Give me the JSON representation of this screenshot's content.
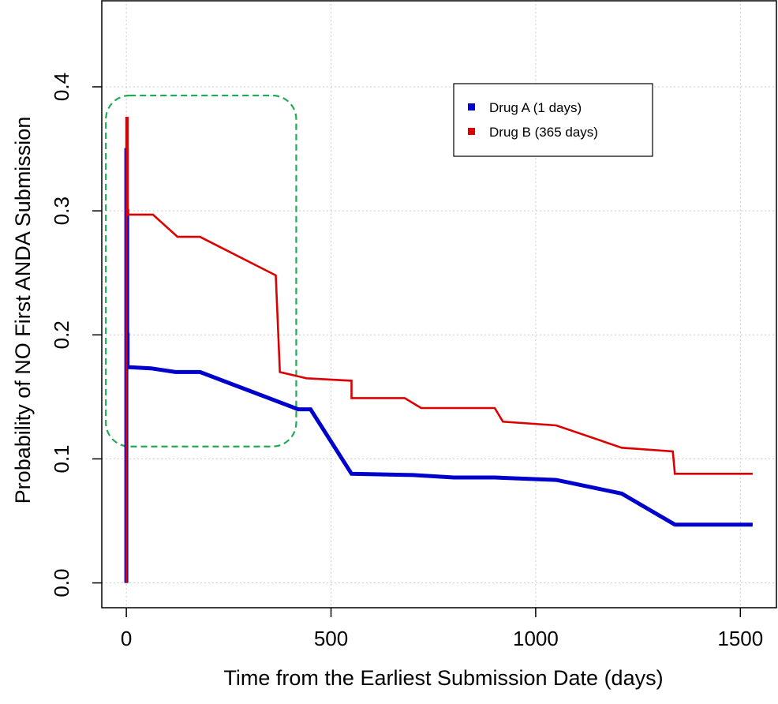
{
  "chart_data": {
    "type": "line",
    "title": "",
    "xlabel": "Time from the Earliest Submission Date (days)",
    "ylabel": "Probability of NO First ANDA Submission",
    "xlim": [
      -60,
      1590
    ],
    "ylim": [
      -0.02,
      0.47
    ],
    "xticks": [
      0,
      500,
      1000,
      1500
    ],
    "xtick_labels": [
      "0",
      "500",
      "1000",
      "1500"
    ],
    "yticks": [
      0.0,
      0.1,
      0.2,
      0.3,
      0.4
    ],
    "ytick_labels": [
      "0.0",
      "0.1",
      "0.2",
      "0.3",
      "0.4"
    ],
    "grid": true,
    "legend_position": "top-right",
    "series": [
      {
        "name": "Drug A (1 days)",
        "color": "#0000cc",
        "x": [
          0,
          0,
          1,
          1,
          2,
          2,
          3,
          3,
          60,
          120,
          180,
          300,
          420,
          450,
          550,
          700,
          800,
          900,
          1050,
          1210,
          1340,
          1530
        ],
        "y": [
          0.0,
          0.349,
          0.349,
          0.3,
          0.3,
          0.2,
          0.2,
          0.174,
          0.173,
          0.17,
          0.17,
          0.155,
          0.14,
          0.14,
          0.088,
          0.087,
          0.085,
          0.085,
          0.083,
          0.072,
          0.047,
          0.047
        ]
      },
      {
        "name": "Drug B (365 days)",
        "color": "#dd0000",
        "x": [
          0,
          0,
          3,
          3,
          65,
          125,
          180,
          365,
          375,
          440,
          550,
          550,
          680,
          720,
          900,
          920,
          1050,
          1210,
          1335,
          1340,
          1530
        ],
        "y": [
          0.0,
          0.375,
          0.375,
          0.297,
          0.297,
          0.279,
          0.279,
          0.248,
          0.17,
          0.165,
          0.163,
          0.149,
          0.149,
          0.141,
          0.141,
          0.13,
          0.127,
          0.109,
          0.106,
          0.088,
          0.088
        ]
      }
    ],
    "annotations": [
      {
        "type": "dashed-rounded-rect",
        "color": "#22aa55",
        "x": [
          -50,
          415
        ],
        "y": [
          0.11,
          0.393
        ]
      }
    ]
  }
}
